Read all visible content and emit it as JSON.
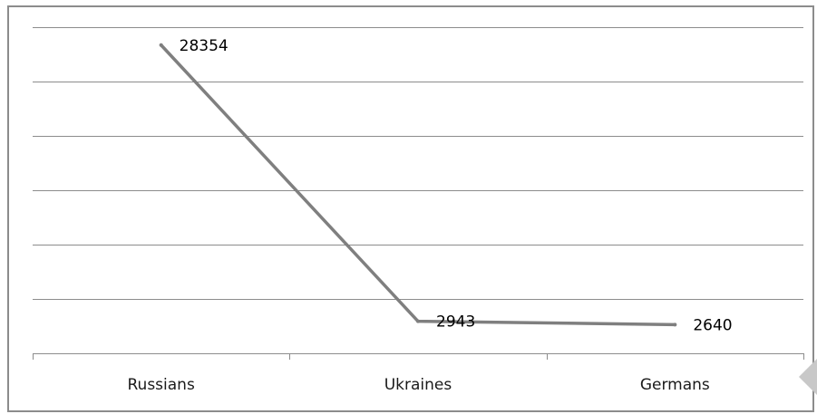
{
  "chart_data": {
    "type": "line",
    "categories": [
      "Russians",
      "Ukraines",
      "Germans"
    ],
    "series": [
      {
        "values": [
          28354,
          2943,
          2640
        ]
      }
    ],
    "data_labels": [
      "28354",
      "2943",
      "2640"
    ],
    "ylim": [
      0,
      30000
    ],
    "grid": true,
    "legend": "none",
    "line_color": "#7f7f7f",
    "grid_color": "#8c8c8c"
  }
}
